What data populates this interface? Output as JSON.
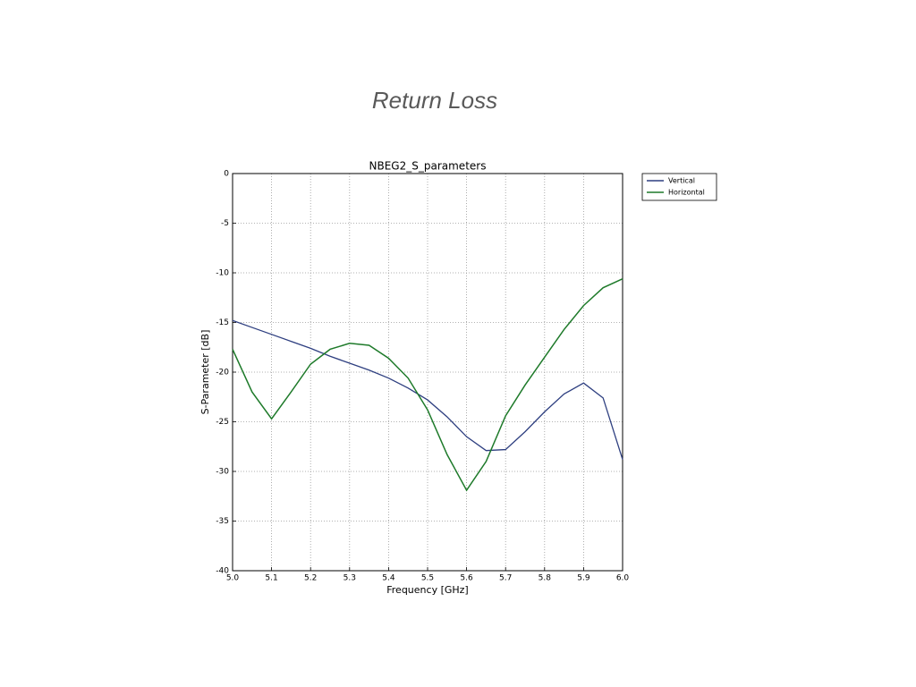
{
  "slide_title": "Return Loss",
  "chart_data": {
    "type": "line",
    "title": "NBEG2_S_parameters",
    "x_label": "Frequency [GHz]",
    "y_label": "S-Parameter [dB]",
    "x": [
      5.0,
      5.05,
      5.1,
      5.15,
      5.2,
      5.25,
      5.3,
      5.35,
      5.4,
      5.45,
      5.5,
      5.55,
      5.6,
      5.65,
      5.7,
      5.75,
      5.8,
      5.85,
      5.9,
      5.95,
      6.0
    ],
    "series": [
      {
        "name": "Vertical",
        "color": "#2e3f80",
        "values": [
          -14.8,
          -15.5,
          -16.2,
          -16.9,
          -17.6,
          -18.4,
          -19.1,
          -19.8,
          -20.6,
          -21.6,
          -22.8,
          -24.5,
          -26.5,
          -27.9,
          -27.8,
          -26.0,
          -24.0,
          -22.2,
          -21.1,
          -22.6,
          -28.8
        ]
      },
      {
        "name": "Horizontal",
        "color": "#1e7a2a",
        "values": [
          -17.7,
          -22.0,
          -24.7,
          -22.0,
          -19.2,
          -17.7,
          -17.1,
          -17.3,
          -18.6,
          -20.6,
          -23.8,
          -28.3,
          -31.9,
          -29.0,
          -24.4,
          -21.3,
          -18.5,
          -15.7,
          -13.3,
          -11.5,
          -10.6
        ]
      }
    ],
    "xlim": [
      5.0,
      6.0
    ],
    "xticks": [
      {
        "value": 5.0,
        "label": "5.0"
      },
      5.1,
      5.2,
      5.3,
      5.4,
      5.5,
      5.6,
      5.7,
      5.8,
      5.9,
      {
        "value": 6.0,
        "label": "6.0"
      }
    ],
    "ylim": [
      -40,
      0
    ],
    "yticks": [
      -40,
      -35,
      -30,
      -25,
      -20,
      -15,
      -10,
      -5,
      0
    ],
    "grid": true,
    "legend": "outside upper right"
  }
}
